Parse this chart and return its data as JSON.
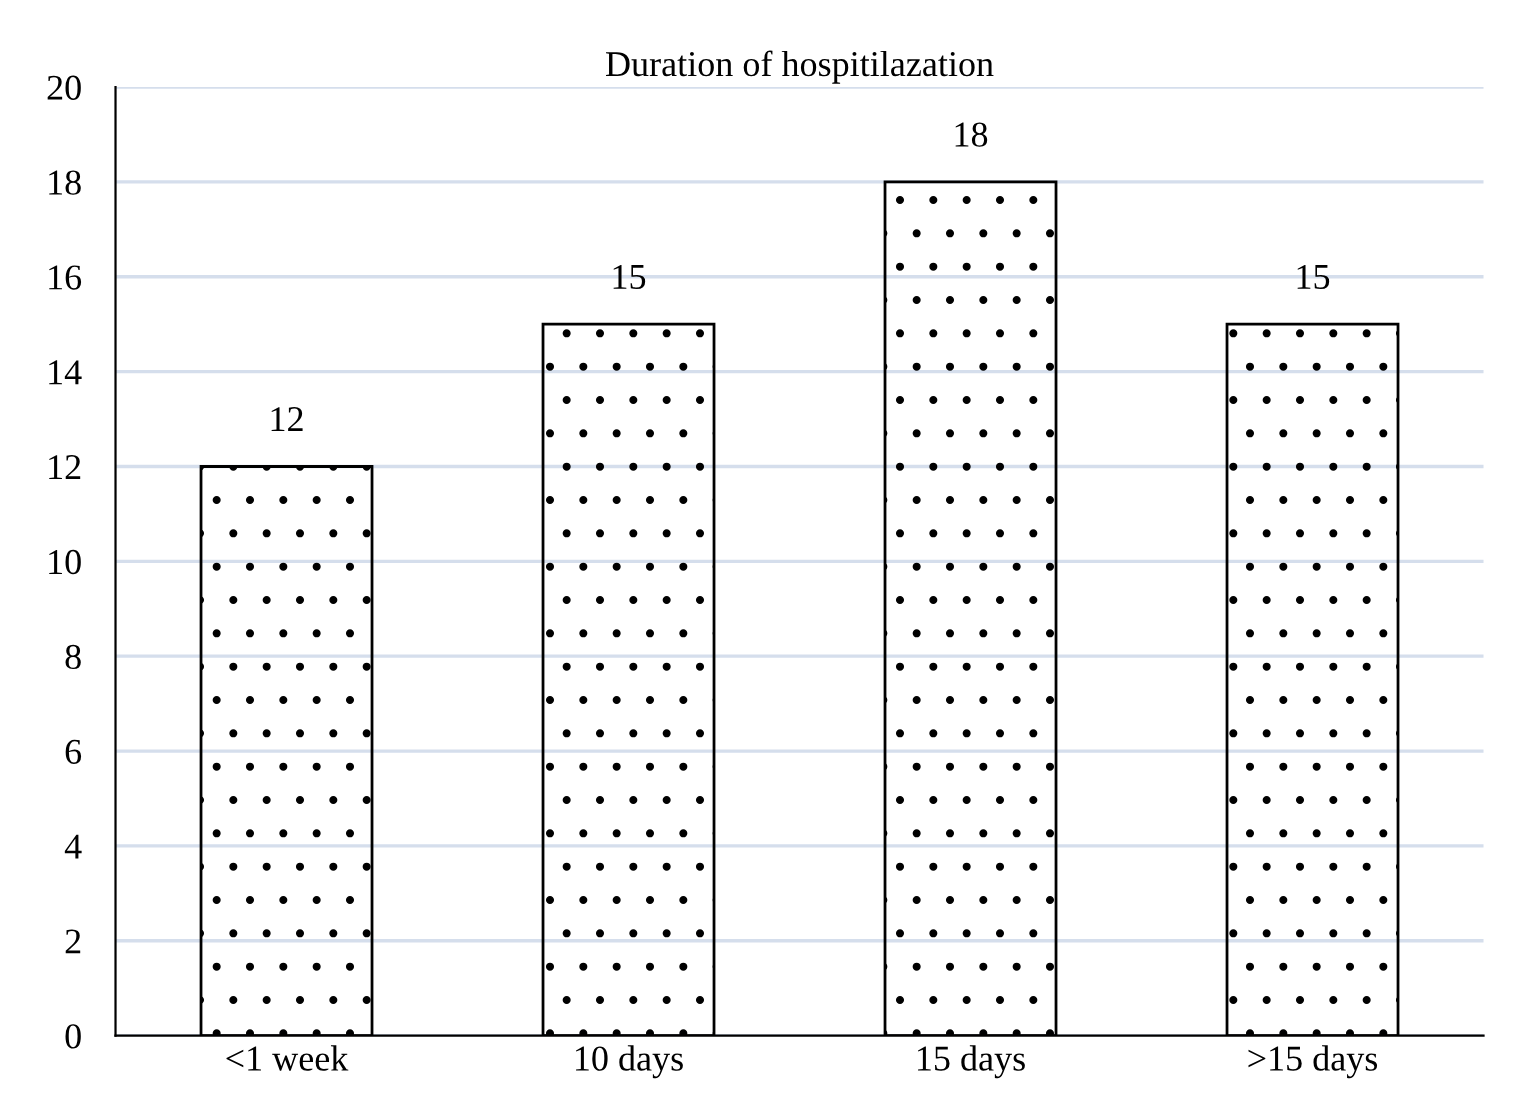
{
  "chart_data": {
    "type": "bar",
    "title": "Duration of hospitilazation",
    "categories": [
      "<1 week",
      "10 days",
      "15 days",
      ">15 days"
    ],
    "values": [
      12,
      15,
      18,
      15
    ],
    "color": "#000000",
    "ylim": [
      0,
      20
    ],
    "yticks": [
      0,
      2,
      4,
      6,
      8,
      10,
      12,
      14,
      16,
      18,
      20
    ],
    "grid": "y",
    "data_labels": true,
    "legend": false
  }
}
